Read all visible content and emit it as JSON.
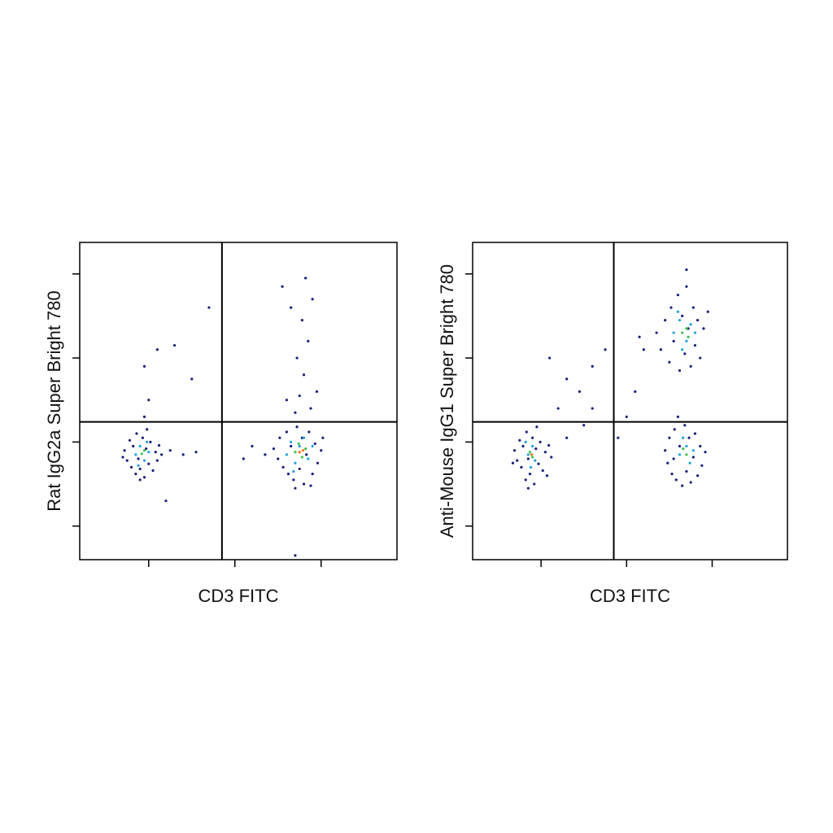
{
  "chart_data": [
    {
      "type": "scatter",
      "ylabel": "Rat IgG2a Super Bright 780",
      "xlabel": "CD3 FITC",
      "xlim": [
        0.2,
        3.88
      ],
      "ylim": [
        -0.4,
        3.375
      ],
      "xticks": [
        1,
        2,
        3
      ],
      "yticks": [
        0,
        1,
        2,
        3
      ],
      "gate": {
        "x": 1.85,
        "y": 1.24
      },
      "series": [
        {
          "color": "#1a1f7a",
          "x": [
            0.72,
            0.75,
            0.78,
            0.8,
            0.82,
            0.85,
            0.86,
            0.88,
            0.9,
            0.93,
            0.95,
            0.97,
            1.0,
            1.02,
            1.05,
            1.08,
            1.1,
            1.12,
            0.7,
            0.98,
            0.9,
            1.15,
            1.25,
            1.4,
            1.55,
            1.0,
            0.95,
            1.1,
            1.3,
            1.5,
            0.95,
            1.2,
            1.7,
            2.45,
            2.5,
            2.52,
            2.56,
            2.6,
            2.62,
            2.65,
            2.68,
            2.72,
            2.75,
            2.78,
            2.8,
            2.83,
            2.86,
            2.9,
            2.93,
            2.96,
            3.0,
            3.02,
            2.35,
            2.2,
            2.1,
            2.7,
            2.88,
            2.7,
            2.75,
            2.8,
            2.72,
            2.85,
            2.78,
            2.65,
            2.9,
            2.82,
            2.55,
            2.95,
            2.6,
            2.88,
            2.7
          ],
          "y": [
            0.9,
            0.78,
            1.02,
            0.7,
            0.95,
            0.62,
            1.1,
            0.8,
            0.68,
            1.05,
            0.58,
            0.92,
            0.74,
            1.0,
            0.66,
            0.88,
            0.78,
            0.96,
            0.82,
            1.15,
            0.55,
            0.85,
            0.9,
            0.85,
            0.88,
            1.5,
            1.9,
            2.1,
            2.15,
            1.75,
            1.3,
            0.3,
            2.6,
            0.92,
            0.8,
            1.05,
            0.7,
            1.12,
            0.62,
            0.95,
            0.55,
            1.18,
            0.68,
            1.05,
            0.5,
            0.85,
            1.12,
            0.62,
            0.98,
            0.75,
            0.9,
            1.05,
            0.85,
            0.95,
            0.8,
            0.45,
            0.48,
            1.35,
            1.55,
            1.8,
            2.0,
            2.2,
            2.45,
            2.6,
            2.7,
            2.95,
            2.85,
            1.6,
            1.5,
            1.4,
            -0.35
          ]
        },
        {
          "color": "#1fa2e0",
          "x": [
            0.85,
            0.9,
            0.95,
            1.0,
            0.88,
            0.98,
            2.6,
            2.65,
            2.7,
            2.75,
            2.85,
            2.9,
            2.8,
            2.68
          ],
          "y": [
            0.85,
            0.95,
            0.78,
            0.88,
            0.72,
            1.0,
            0.85,
            1.0,
            0.75,
            0.95,
            0.8,
            0.95,
            1.05,
            0.65
          ]
        },
        {
          "color": "#3fc24a",
          "x": [
            0.92,
            0.95,
            2.7,
            2.78,
            2.82,
            2.74
          ],
          "y": [
            0.86,
            0.9,
            0.88,
            0.82,
            0.92,
            0.98
          ]
        },
        {
          "color": "#f2751a",
          "x": [
            2.75,
            2.79
          ],
          "y": [
            0.88,
            0.9
          ]
        }
      ]
    },
    {
      "type": "scatter",
      "ylabel": "Anti-Mouse IgG1 Super Bright 780",
      "xlabel": "CD3 FITC",
      "xlim": [
        0.2,
        3.88
      ],
      "ylim": [
        -0.4,
        3.375
      ],
      "xticks": [
        1,
        2,
        3
      ],
      "yticks": [
        0,
        1,
        2,
        3
      ],
      "gate": {
        "x": 1.85,
        "y": 1.24
      },
      "series": [
        {
          "color": "#1a1f7a",
          "x": [
            0.69,
            0.72,
            0.75,
            0.77,
            0.79,
            0.82,
            0.83,
            0.85,
            0.87,
            0.9,
            0.92,
            0.94,
            0.97,
            0.99,
            1.02,
            1.05,
            1.07,
            1.09,
            0.67,
            0.95,
            0.85,
            1.12,
            1.3,
            1.5,
            1.2,
            1.45,
            1.6,
            1.75,
            1.3,
            1.1,
            1.6,
            1.9,
            2.0,
            2.45,
            2.48,
            2.5,
            2.53,
            2.56,
            2.58,
            2.62,
            2.65,
            2.68,
            2.7,
            2.73,
            2.75,
            2.78,
            2.8,
            2.83,
            2.86,
            2.88,
            2.55,
            2.92,
            2.6,
            2.35,
            2.4,
            2.45,
            2.5,
            2.52,
            2.55,
            2.6,
            2.62,
            2.65,
            2.68,
            2.7,
            2.72,
            2.75,
            2.78,
            2.8,
            2.83,
            2.86,
            2.9,
            2.95,
            2.2,
            2.1,
            2.15,
            2.7
          ],
          "y": [
            0.9,
            0.78,
            1.02,
            0.7,
            0.95,
            0.55,
            1.12,
            0.8,
            0.62,
            1.05,
            0.5,
            0.92,
            0.74,
            1.0,
            0.66,
            0.88,
            0.6,
            0.96,
            0.75,
            1.18,
            0.45,
            0.82,
            1.05,
            1.2,
            1.4,
            1.6,
            1.9,
            2.1,
            1.75,
            2.0,
            1.4,
            1.05,
            1.3,
            0.9,
            0.75,
            1.05,
            0.62,
            1.15,
            0.55,
            0.95,
            0.48,
            1.2,
            0.65,
            1.05,
            0.52,
            0.82,
            1.1,
            0.6,
            0.95,
            0.72,
            0.8,
            0.88,
            1.3,
            2.3,
            2.1,
            2.45,
            1.95,
            2.6,
            2.2,
            2.75,
            1.85,
            2.5,
            2.05,
            2.85,
            2.35,
            1.9,
            2.6,
            2.15,
            2.45,
            2.0,
            2.35,
            2.55,
            2.1,
            1.6,
            2.25,
            3.05
          ]
        },
        {
          "color": "#1fa2e0",
          "x": [
            0.85,
            0.9,
            0.93,
            0.82,
            0.88,
            2.62,
            2.7,
            2.74,
            2.66,
            2.78,
            2.55,
            2.62,
            2.7,
            2.75,
            2.65,
            2.8,
            2.6
          ],
          "y": [
            0.85,
            0.95,
            0.78,
            1.0,
            0.7,
            0.85,
            0.95,
            0.75,
            1.05,
            0.9,
            2.3,
            2.45,
            2.2,
            2.4,
            2.1,
            2.3,
            2.55
          ]
        },
        {
          "color": "#3fc24a",
          "x": [
            0.87,
            0.9,
            2.7,
            2.66,
            2.65,
            2.7,
            2.72
          ],
          "y": [
            0.88,
            0.82,
            0.85,
            0.92,
            2.3,
            2.35,
            2.25
          ]
        },
        {
          "color": "#f2751a",
          "x": [
            0.89
          ],
          "y": [
            0.85
          ]
        }
      ]
    }
  ]
}
